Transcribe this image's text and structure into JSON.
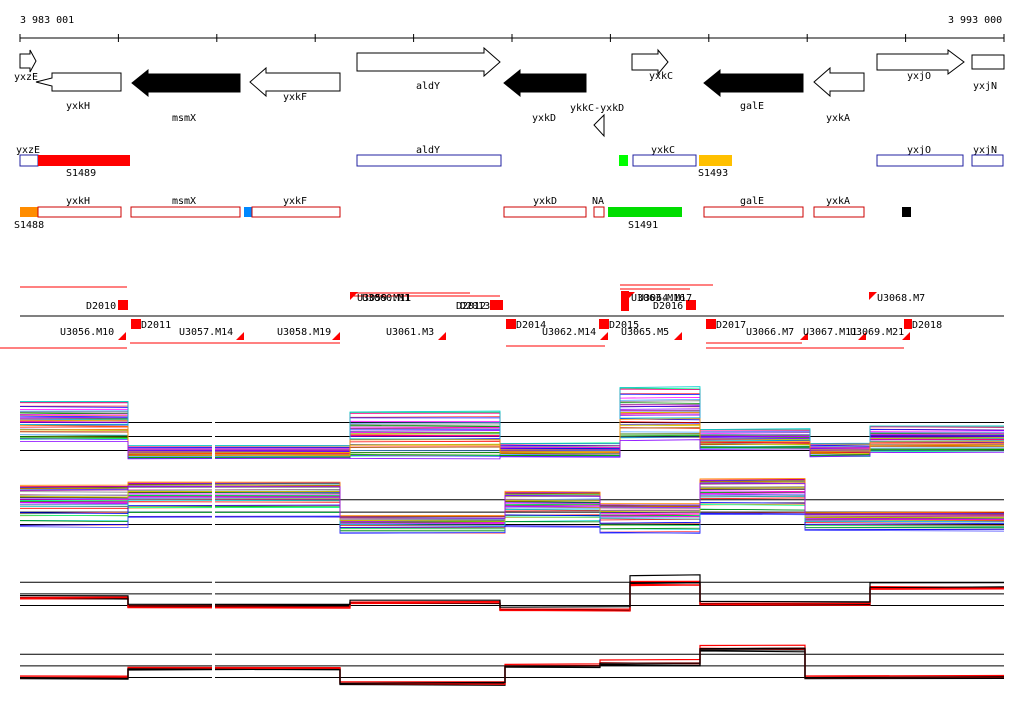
{
  "ruler": {
    "start_label": "3 983 001",
    "end_label": "3 993 000"
  },
  "genes": [
    {
      "name": "yxzE",
      "strand": "+",
      "fill": "white"
    },
    {
      "name": "yxkH",
      "strand": "-",
      "fill": "white"
    },
    {
      "name": "msmX",
      "strand": "-",
      "fill": "black"
    },
    {
      "name": "yxkF",
      "strand": "-",
      "fill": "white"
    },
    {
      "name": "aldY",
      "strand": "+",
      "fill": "white"
    },
    {
      "name": "yxkD",
      "strand": "-",
      "fill": "black"
    },
    {
      "name": "ykkC-yxkD",
      "strand": "-",
      "fill": "white"
    },
    {
      "name": "yxkC",
      "strand": "+",
      "fill": "white"
    },
    {
      "name": "galE",
      "strand": "-",
      "fill": "black"
    },
    {
      "name": "yxkA",
      "strand": "-",
      "fill": "white"
    },
    {
      "name": "yxjO",
      "strand": "+",
      "fill": "white"
    },
    {
      "name": "yxjN",
      "strand": "+",
      "fill": "white"
    }
  ],
  "forward_segments": {
    "boxes": [
      "yxzE",
      "aldY",
      "yxkC",
      "yxjO",
      "yxjN"
    ],
    "labels": [
      "yxzE",
      "aldY",
      "yxkC",
      "yxjO",
      "yxjN"
    ],
    "segments": [
      {
        "name": "S1489",
        "color": "#ff0000"
      },
      {
        "name": "S1493",
        "color": "#ffc000"
      }
    ],
    "extra_marks": [
      {
        "color": "#00ff00"
      }
    ]
  },
  "reverse_segments": {
    "labels": [
      "yxkH",
      "msmX",
      "yxkF",
      "yxkD",
      "NA",
      "galE",
      "yxkA"
    ],
    "segments": [
      {
        "name": "S1488",
        "color": "#ff8c00"
      },
      {
        "name": "S1491",
        "color": "#00dd00"
      }
    ],
    "extra_marks": [
      {
        "color": "#0088ff"
      },
      {
        "color": "#000000"
      }
    ]
  },
  "upshifts": [
    "U3059.M11",
    "U3060.M1",
    "U3063.M16",
    "U3064.M17",
    "U3068.M7"
  ],
  "downshifts": [
    "D2010",
    "D2012",
    "D2013",
    "D2016"
  ],
  "lower_labels": [
    "U3056.M10",
    "D2011",
    "U3057.M14",
    "U3058.M19",
    "U3061.M3",
    "D2014",
    "U3062.M14",
    "D2015",
    "U3065.M5",
    "D2017",
    "U3066.M7",
    "U3067.M11",
    "U3069.M21",
    "D2018"
  ],
  "expression_panels": [
    {
      "name": "panel-1",
      "kind": "multicolor-forward"
    },
    {
      "name": "panel-2",
      "kind": "multicolor-reverse"
    },
    {
      "name": "panel-3",
      "kind": "summary-forward"
    },
    {
      "name": "panel-4",
      "kind": "summary-reverse"
    }
  ],
  "colors": {
    "red": "#ff0000",
    "dark_blue": "#2020a0",
    "box_red": "#cc0000",
    "black": "#000000"
  }
}
